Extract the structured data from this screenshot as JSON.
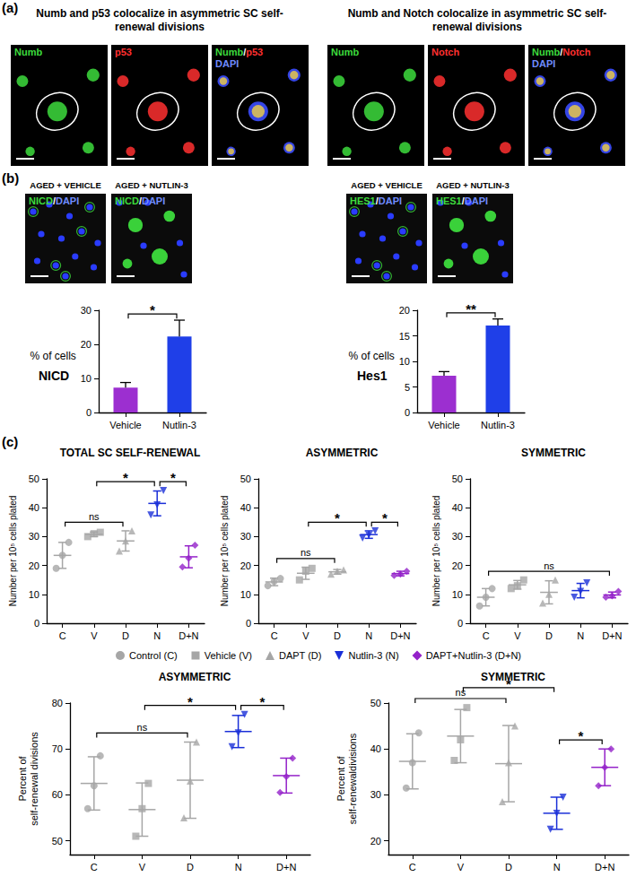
{
  "figure": {
    "panel_a": {
      "label": "(a)",
      "groups": [
        {
          "title": "Numb and p53 colocalize in asymmetric SC self-renewal divisions",
          "images": [
            {
              "lines": [
                [
                  {
                    "text": "Numb",
                    "color": "#3ddc3d"
                  }
                ]
              ]
            },
            {
              "lines": [
                [
                  {
                    "text": "p53",
                    "color": "#ff3030"
                  }
                ]
              ]
            },
            {
              "lines": [
                [
                  {
                    "text": "Numb",
                    "color": "#3ddc3d"
                  },
                  {
                    "text": "/",
                    "color": "#ffffff"
                  },
                  {
                    "text": "p53",
                    "color": "#ff3030"
                  }
                ],
                [
                  {
                    "text": "DAPI",
                    "color": "#6f8cff"
                  }
                ]
              ]
            }
          ]
        },
        {
          "title": "Numb and Notch colocalize in asymmetric SC self-renewal divisions",
          "images": [
            {
              "lines": [
                [
                  {
                    "text": "Numb",
                    "color": "#3ddc3d"
                  }
                ]
              ]
            },
            {
              "lines": [
                [
                  {
                    "text": "Notch",
                    "color": "#ff3030"
                  }
                ]
              ]
            },
            {
              "lines": [
                [
                  {
                    "text": "Numb",
                    "color": "#3ddc3d"
                  },
                  {
                    "text": "/",
                    "color": "#ffffff"
                  },
                  {
                    "text": "Notch",
                    "color": "#ff3030"
                  }
                ],
                [
                  {
                    "text": "DAPI",
                    "color": "#6f8cff"
                  }
                ]
              ]
            }
          ]
        }
      ]
    },
    "panel_b": {
      "label": "(b)",
      "groups": [
        {
          "images": [
            {
              "title": "AGED + VEHICLE",
              "lines": [
                [
                  {
                    "text": "NICD",
                    "color": "#3ddc3d"
                  },
                  {
                    "text": "/",
                    "color": "#ffffff"
                  },
                  {
                    "text": "DAPI",
                    "color": "#6f8cff"
                  }
                ]
              ]
            },
            {
              "title": "AGED + NUTLIN-3",
              "lines": [
                [
                  {
                    "text": "NICD",
                    "color": "#3ddc3d"
                  },
                  {
                    "text": "/",
                    "color": "#ffffff"
                  },
                  {
                    "text": "DAPI",
                    "color": "#6f8cff"
                  }
                ]
              ]
            }
          ]
        },
        {
          "images": [
            {
              "title": "AGED + VEHICLE",
              "lines": [
                [
                  {
                    "text": "HES1",
                    "color": "#3ddc3d"
                  },
                  {
                    "text": "/",
                    "color": "#ffffff"
                  },
                  {
                    "text": "DAPI",
                    "color": "#6f8cff"
                  }
                ]
              ]
            },
            {
              "title": "AGED + NUTLIN-3",
              "lines": [
                [
                  {
                    "text": "HES1",
                    "color": "#3ddc3d"
                  },
                  {
                    "text": "/",
                    "color": "#ffffff"
                  },
                  {
                    "text": "DAPI",
                    "color": "#6f8cff"
                  }
                ]
              ]
            }
          ]
        }
      ]
    },
    "panel_c": {
      "label": "(c)",
      "legend_entries": [
        {
          "name": "Control (C)",
          "color": "#a6a6a6",
          "marker": "circle"
        },
        {
          "name": "Vehicle (V)",
          "color": "#a6a6a6",
          "marker": "square"
        },
        {
          "name": "DAPT (D)",
          "color": "#a6a6a6",
          "marker": "triangle"
        },
        {
          "name": "Nutlin-3 (N)",
          "color": "#1a2fd8",
          "marker": "triangle-down"
        },
        {
          "name": "DAPT+Nutlin-3 (D+N)",
          "color": "#9422c9",
          "marker": "diamond"
        }
      ]
    }
  },
  "chart_data": [
    {
      "type": "bar",
      "title": "NICD",
      "y_label": "% of cells",
      "categories": [
        "Vehicle",
        "Nutlin-3"
      ],
      "values": [
        7.3,
        22.3
      ],
      "error": [
        1.5,
        4.8
      ],
      "colors": [
        "#9c2fd0",
        "#1f3fe8"
      ],
      "ylim": [
        0,
        30
      ],
      "yticks": [
        0,
        10,
        20,
        30
      ],
      "grid": false,
      "comparisons": [
        {
          "from": "Vehicle",
          "to": "Nutlin-3",
          "label": "*"
        }
      ]
    },
    {
      "type": "bar",
      "title": "Hes1",
      "y_label": "% of cells",
      "categories": [
        "Vehicle",
        "Nutlin-3"
      ],
      "values": [
        7.2,
        17.0
      ],
      "error": [
        0.8,
        1.3
      ],
      "colors": [
        "#9c2fd0",
        "#1f3fe8"
      ],
      "ylim": [
        0,
        20
      ],
      "yticks": [
        0,
        5,
        10,
        15,
        20
      ],
      "grid": false,
      "comparisons": [
        {
          "from": "Vehicle",
          "to": "Nutlin-3",
          "label": "**"
        }
      ]
    },
    {
      "type": "scatter",
      "title": "TOTAL SC SELF-RENEWAL",
      "y_label": "Number per 10⁵ cells plated",
      "categories": [
        "C",
        "V",
        "D",
        "N",
        "D+N"
      ],
      "groups": [
        {
          "color": "#a6a6a6",
          "marker": "circle",
          "values": [
            19,
            23.5,
            28
          ],
          "mean": 23.5,
          "sd": 4.5
        },
        {
          "color": "#a6a6a6",
          "marker": "square",
          "values": [
            30,
            31,
            31.5
          ],
          "mean": 30.8,
          "sd": 0.8
        },
        {
          "color": "#a6a6a6",
          "marker": "triangle",
          "values": [
            25,
            28.5,
            32
          ],
          "mean": 28.5,
          "sd": 3.5
        },
        {
          "color": "#1a2fd8",
          "marker": "triangle-down",
          "values": [
            37.5,
            41,
            46
          ],
          "mean": 41.5,
          "sd": 4.3
        },
        {
          "color": "#9422c9",
          "marker": "diamond",
          "values": [
            19.5,
            22.5,
            27
          ],
          "mean": 23,
          "sd": 3.8
        }
      ],
      "ylim": [
        0,
        50
      ],
      "yticks": [
        0,
        10,
        20,
        30,
        40,
        50
      ],
      "grid": false,
      "comparisons": [
        {
          "from": "C",
          "to": "D",
          "label": "ns"
        },
        {
          "from": "V",
          "to": "N",
          "label": "*"
        },
        {
          "from": "N",
          "to": "D+N",
          "label": "*"
        }
      ]
    },
    {
      "type": "scatter",
      "title": "ASYMMETRIC",
      "y_label": "Number per 10⁵ cells plated",
      "categories": [
        "C",
        "V",
        "D",
        "N",
        "D+N"
      ],
      "groups": [
        {
          "color": "#a6a6a6",
          "marker": "circle",
          "values": [
            13,
            14.5,
            15.5
          ],
          "mean": 14.3,
          "sd": 1.3
        },
        {
          "color": "#a6a6a6",
          "marker": "square",
          "values": [
            15,
            18,
            19
          ],
          "mean": 17.3,
          "sd": 2.1
        },
        {
          "color": "#a6a6a6",
          "marker": "triangle",
          "values": [
            17,
            18,
            18.5
          ],
          "mean": 17.8,
          "sd": 0.8
        },
        {
          "color": "#1a2fd8",
          "marker": "triangle-down",
          "values": [
            29.5,
            30.5,
            32
          ],
          "mean": 30.7,
          "sd": 1.3
        },
        {
          "color": "#9422c9",
          "marker": "diamond",
          "values": [
            16.5,
            17,
            18
          ],
          "mean": 17.2,
          "sd": 0.8
        }
      ],
      "ylim": [
        0,
        50
      ],
      "yticks": [
        0,
        10,
        20,
        30,
        40,
        50
      ],
      "grid": false,
      "comparisons": [
        {
          "from": "C",
          "to": "D",
          "label": "ns"
        },
        {
          "from": "V",
          "to": "N",
          "label": "*"
        },
        {
          "from": "N",
          "to": "D+N",
          "label": "*"
        }
      ]
    },
    {
      "type": "scatter",
      "title": "SYMMETRIC",
      "y_label": "Number per 10⁵ cells plated",
      "categories": [
        "C",
        "V",
        "D",
        "N",
        "D+N"
      ],
      "groups": [
        {
          "color": "#a6a6a6",
          "marker": "circle",
          "values": [
            6,
            9,
            12
          ],
          "mean": 9,
          "sd": 3
        },
        {
          "color": "#a6a6a6",
          "marker": "square",
          "values": [
            12,
            13,
            15
          ],
          "mean": 13.3,
          "sd": 1.5
        },
        {
          "color": "#a6a6a6",
          "marker": "triangle",
          "values": [
            7,
            10,
            15
          ],
          "mean": 10.7,
          "sd": 4
        },
        {
          "color": "#1a2fd8",
          "marker": "triangle-down",
          "values": [
            9,
            11,
            14
          ],
          "mean": 11.3,
          "sd": 2.5
        },
        {
          "color": "#9422c9",
          "marker": "diamond",
          "values": [
            9,
            9.5,
            11
          ],
          "mean": 9.8,
          "sd": 1
        }
      ],
      "ylim": [
        0,
        50
      ],
      "yticks": [
        0,
        10,
        20,
        30,
        40,
        50
      ],
      "grid": false,
      "comparisons": [
        {
          "from": "C",
          "to": "D+N",
          "label": "ns"
        }
      ]
    },
    {
      "type": "scatter",
      "title": "ASYMMETRIC",
      "y_label": "Percent of\nself-renewal divisions",
      "categories": [
        "C",
        "V",
        "D",
        "N",
        "D+N"
      ],
      "groups": [
        {
          "color": "#a6a6a6",
          "marker": "circle",
          "values": [
            57,
            62,
            68.5
          ],
          "mean": 62.5,
          "sd": 5.8
        },
        {
          "color": "#a6a6a6",
          "marker": "square",
          "values": [
            51,
            57,
            62.5
          ],
          "mean": 56.8,
          "sd": 5.8
        },
        {
          "color": "#a6a6a6",
          "marker": "triangle",
          "values": [
            55,
            63,
            71.5
          ],
          "mean": 63.2,
          "sd": 8.3
        },
        {
          "color": "#1a2fd8",
          "marker": "triangle-down",
          "values": [
            70.5,
            73.5,
            77.5
          ],
          "mean": 73.8,
          "sd": 3.5
        },
        {
          "color": "#9422c9",
          "marker": "diamond",
          "values": [
            60.5,
            64,
            68
          ],
          "mean": 64.2,
          "sd": 3.8
        }
      ],
      "ylim": [
        47,
        80
      ],
      "yticks": [
        50,
        60,
        70,
        80
      ],
      "grid": false,
      "comparisons": [
        {
          "from": "C",
          "to": "D",
          "label": "ns"
        },
        {
          "from": "V",
          "to": "N",
          "label": "*"
        },
        {
          "from": "N",
          "to": "D+N",
          "label": "*"
        }
      ]
    },
    {
      "type": "scatter",
      "title": "SYMMETRIC",
      "y_label": "Percent of\nself-renewaldivisions",
      "categories": [
        "C",
        "V",
        "D",
        "N",
        "D+N"
      ],
      "groups": [
        {
          "color": "#a6a6a6",
          "marker": "circle",
          "values": [
            31.5,
            37,
            43.5
          ],
          "mean": 37.3,
          "sd": 6
        },
        {
          "color": "#a6a6a6",
          "marker": "square",
          "values": [
            37.5,
            42,
            49
          ],
          "mean": 42.8,
          "sd": 5.8
        },
        {
          "color": "#a6a6a6",
          "marker": "triangle",
          "values": [
            28.5,
            37,
            45
          ],
          "mean": 36.8,
          "sd": 8.3
        },
        {
          "color": "#1a2fd8",
          "marker": "triangle-down",
          "values": [
            22.5,
            26,
            29.5
          ],
          "mean": 26,
          "sd": 3.5
        },
        {
          "color": "#9422c9",
          "marker": "diamond",
          "values": [
            32,
            36,
            40
          ],
          "mean": 36,
          "sd": 4
        }
      ],
      "ylim": [
        17,
        50
      ],
      "yticks": [
        20,
        30,
        40,
        50
      ],
      "grid": false,
      "comparisons": [
        {
          "from": "C",
          "to": "D",
          "label": "ns"
        },
        {
          "from": "V",
          "to": "N",
          "label": "*"
        },
        {
          "from": "N",
          "to": "D+N",
          "label": "*"
        }
      ]
    }
  ]
}
